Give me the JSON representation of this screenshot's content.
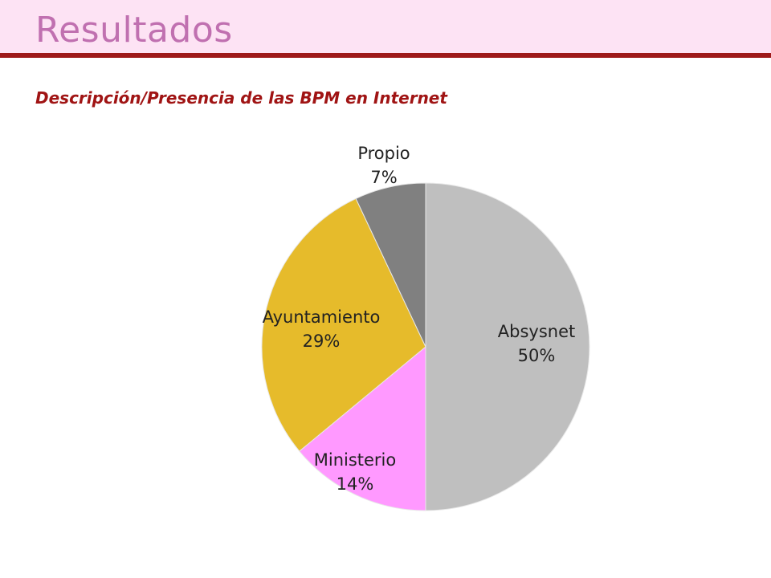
{
  "page": {
    "title": "Resultados"
  },
  "chart_data": {
    "type": "pie",
    "title": "Descripción/Presencia de las BPM en Internet",
    "start_angle_deg": -90,
    "direction": "clockwise",
    "slices": [
      {
        "label": "Absysnet",
        "value": 50,
        "percent_label": "50%",
        "color": "#bfbfbf"
      },
      {
        "label": "Ministerio",
        "value": 14,
        "percent_label": "14%",
        "color": "#ff99ff"
      },
      {
        "label": "Ayuntamiento",
        "value": 29,
        "percent_label": "29%",
        "color": "#e6bb2b"
      },
      {
        "label": "Propio",
        "value": 7,
        "percent_label": "7%",
        "color": "#808080"
      }
    ]
  },
  "colors": {
    "header_bg": "#fde3f4",
    "title": "#c070b0",
    "rule": "#9e1a1a",
    "subtitle": "#a01414"
  }
}
